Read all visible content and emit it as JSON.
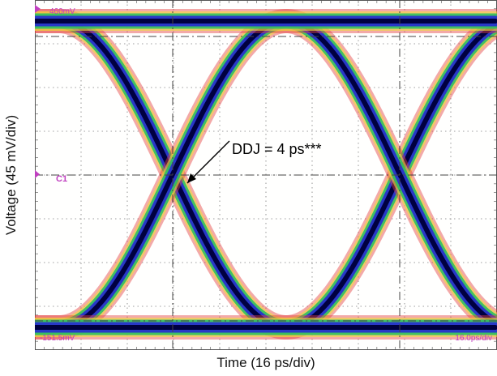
{
  "chart_data": {
    "type": "line",
    "title": "",
    "xlabel": "Time (16 ps/div)",
    "ylabel": "Voltage (45 mV/div)",
    "grid": true,
    "divisions": {
      "x": 10,
      "y": 8
    },
    "instrument_labels": {
      "top_left": "460mV",
      "bottom_left": "-151.5mV",
      "bottom_right": "16.0ps/div",
      "channel_marker": "C1"
    },
    "annotations": [
      {
        "text": "DDJ = 4 ps***",
        "x_div": 1.7,
        "y_div": 4.1
      }
    ]
  },
  "colors": {
    "background": "#fffffe",
    "grid": "#7d7d7d",
    "trace_core": "#000040",
    "trace_blue": "#2838c8",
    "trace_green": "#22c060",
    "trace_yellow": "#f0e040",
    "trace_red": "#e44040",
    "marker": "#c040c0"
  }
}
